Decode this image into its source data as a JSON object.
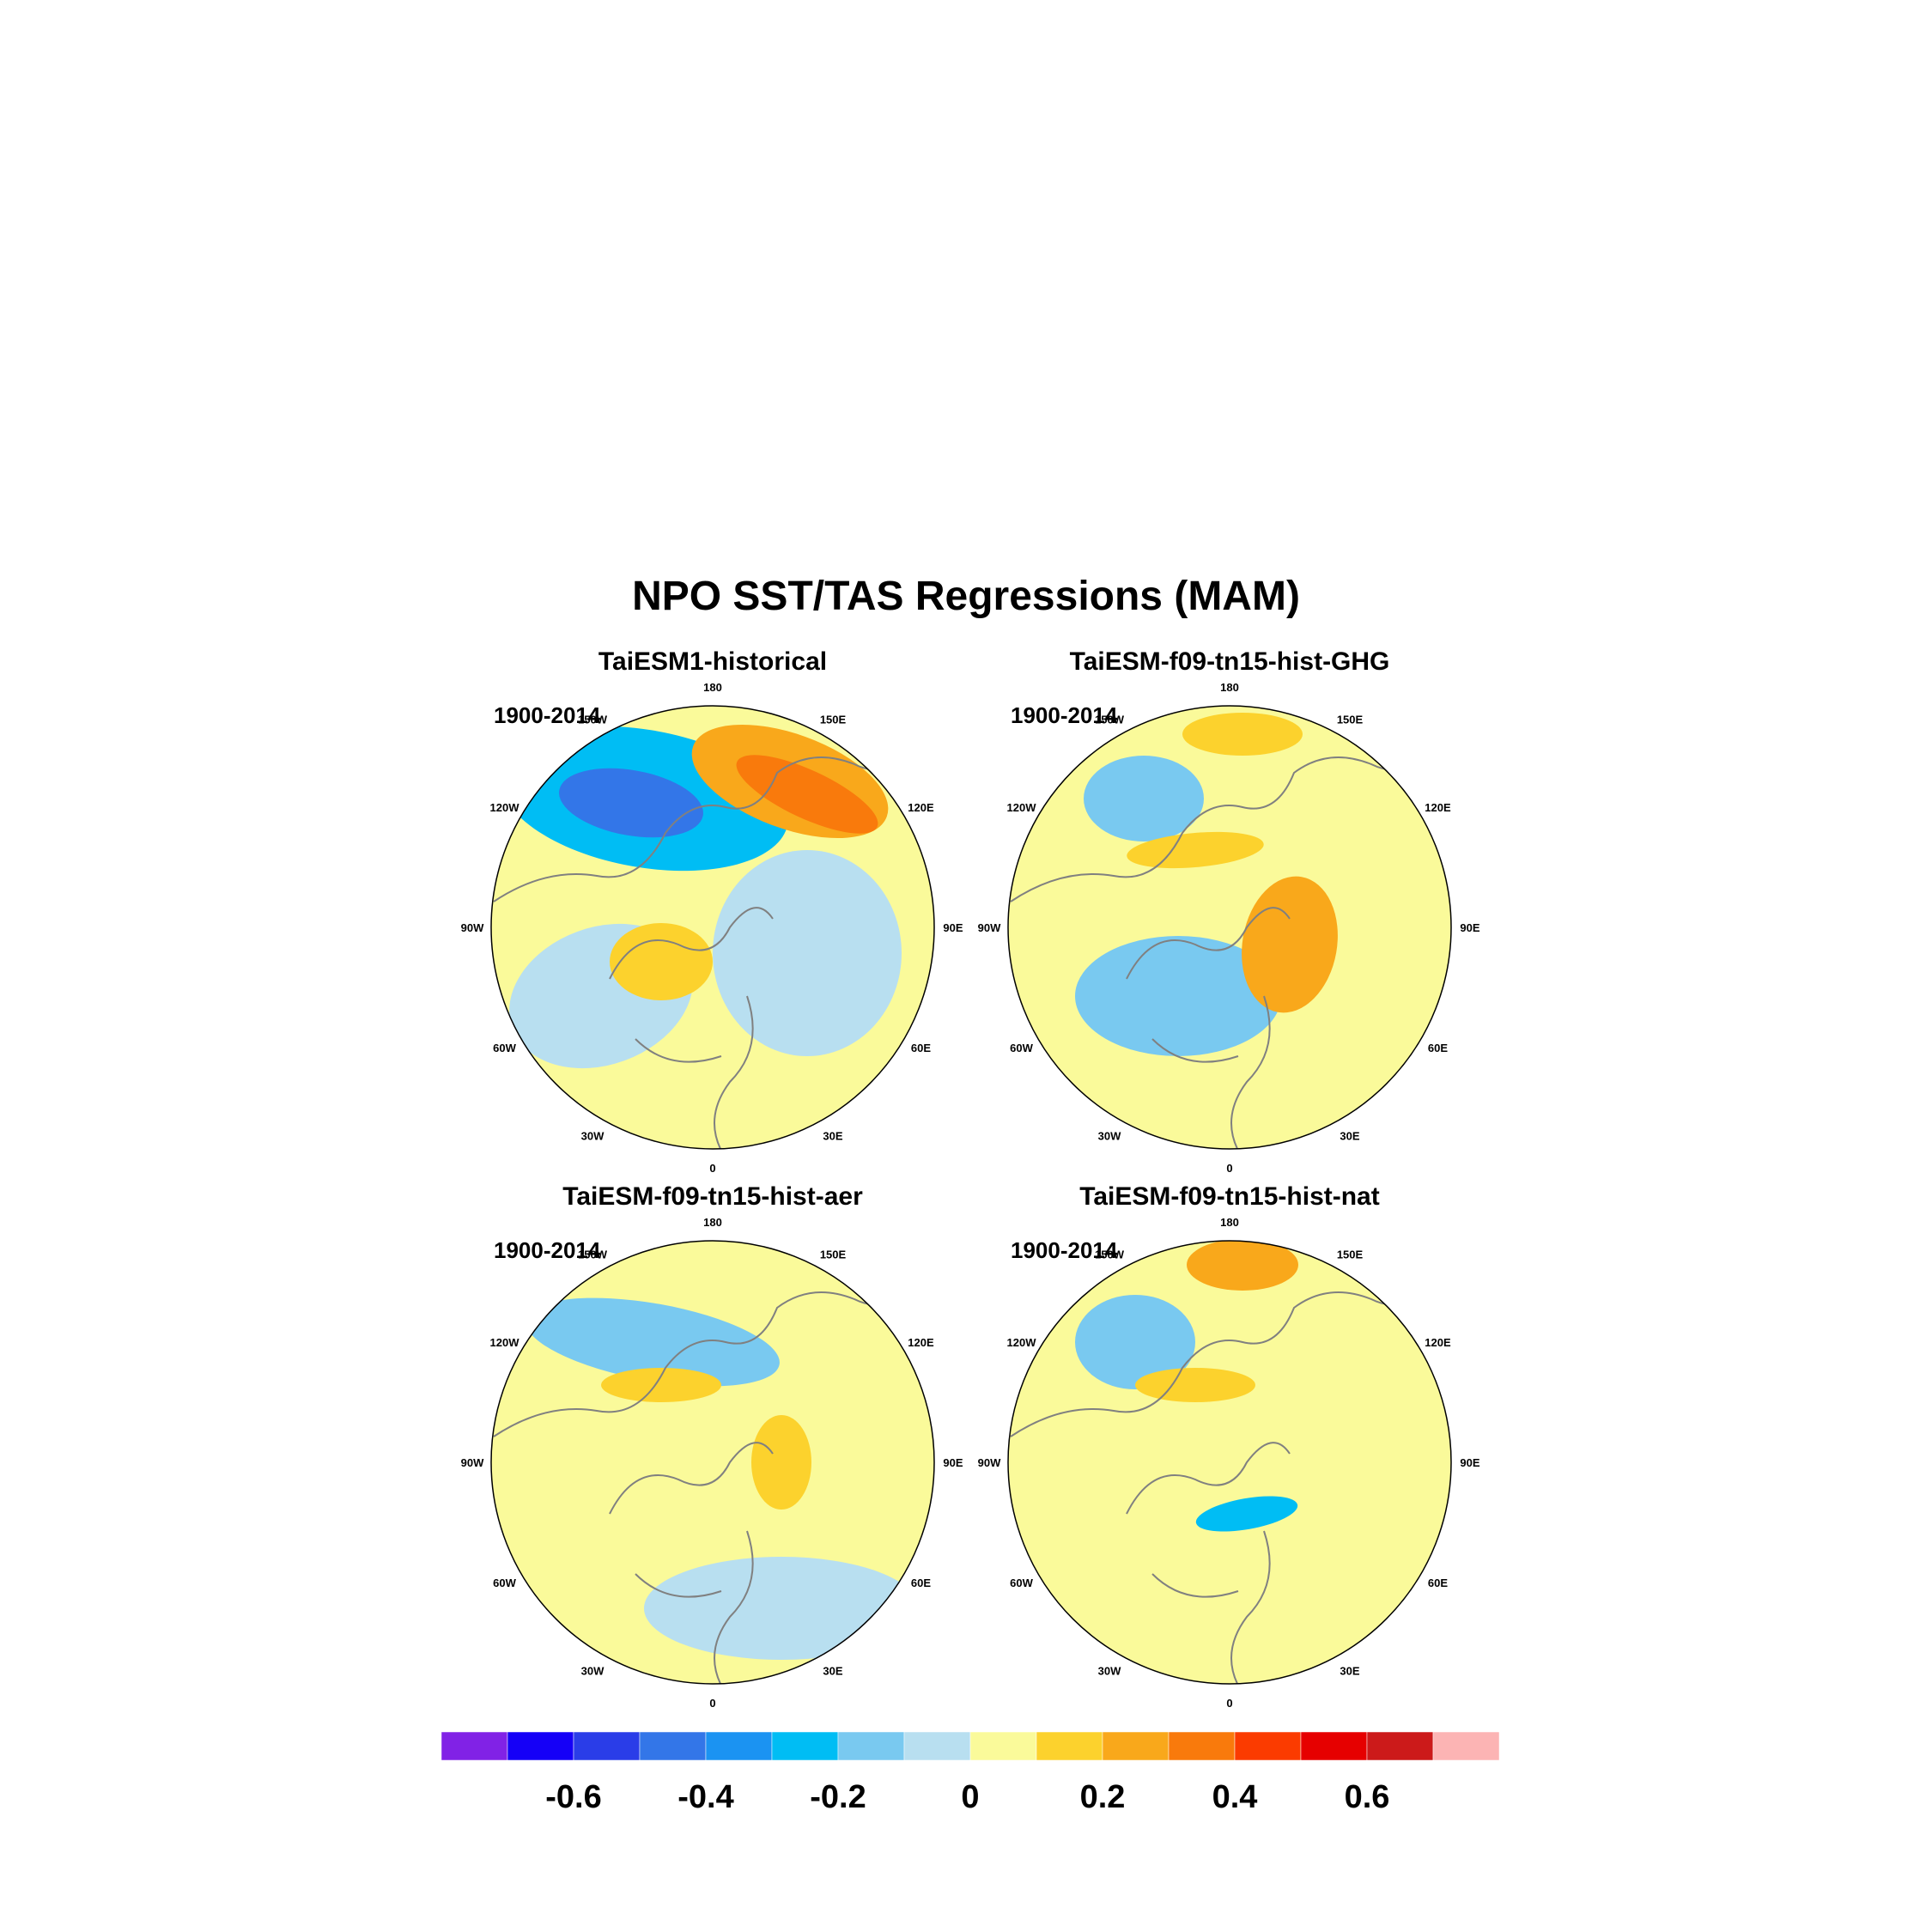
{
  "figure": {
    "title": "NPO SST/TAS Regressions (MAM)"
  },
  "lon_labels": [
    "180",
    "150E",
    "120E",
    "90E",
    "60E",
    "30E",
    "0",
    "30W",
    "60W",
    "90W",
    "120W",
    "150W"
  ],
  "panels": [
    {
      "title": "TaiESM1-historical",
      "period": "1900-2014",
      "anomalies": [
        {
          "name": "north-pacific-cold-core",
          "level": -0.5
        },
        {
          "name": "north-pacific-cold-outer",
          "level": -0.3
        },
        {
          "name": "kuroshio-warm-outer",
          "level": 0.25
        },
        {
          "name": "kuroshio-warm-core",
          "level": 0.35
        },
        {
          "name": "eurasia-cool",
          "level": -0.1
        },
        {
          "name": "atlantic-cool",
          "level": -0.1
        },
        {
          "name": "north-america-warm",
          "level": 0.15
        }
      ]
    },
    {
      "title": "TaiESM-f09-tn15-hist-GHG",
      "period": "1900-2014",
      "anomalies": [
        {
          "name": "north-pacific-cool",
          "level": -0.2
        },
        {
          "name": "bering-warm",
          "level": 0.15
        },
        {
          "name": "siberia-warm",
          "level": 0.15
        },
        {
          "name": "europe-warm",
          "level": 0.2
        },
        {
          "name": "atlantic-cool",
          "level": -0.15
        }
      ]
    },
    {
      "title": "TaiESM-f09-tn15-hist-aer",
      "period": "1900-2014",
      "anomalies": [
        {
          "name": "north-pacific-cool",
          "level": -0.2
        },
        {
          "name": "siberia-warm",
          "level": 0.15
        },
        {
          "name": "europe-cool",
          "level": -0.1
        },
        {
          "name": "canada-warm",
          "level": 0.15
        }
      ]
    },
    {
      "title": "TaiESM-f09-tn15-hist-nat",
      "period": "1900-2014",
      "anomalies": [
        {
          "name": "north-pacific-cool",
          "level": -0.2
        },
        {
          "name": "bering-warm",
          "level": 0.25
        },
        {
          "name": "greenland-cool",
          "level": -0.3
        },
        {
          "name": "canada-warm",
          "level": 0.15
        }
      ]
    }
  ],
  "colorbar": {
    "colors": [
      "#8122e6",
      "#1500f7",
      "#2a3de8",
      "#3376e8",
      "#1b93f2",
      "#00bdf4",
      "#79c9f0",
      "#b8dff0",
      "#fafa9a",
      "#fcd22d",
      "#f9a81b",
      "#f97a0c",
      "#fb3b00",
      "#e60000",
      "#cc1a1a",
      "#fcb4b4"
    ],
    "tick_labels": [
      "-0.6",
      "-0.4",
      "-0.2",
      "0",
      "0.2",
      "0.4",
      "0.6"
    ],
    "tick_values": [
      -0.6,
      -0.4,
      -0.2,
      0,
      0.2,
      0.4,
      0.6
    ],
    "min": -0.8,
    "max": 0.8
  }
}
